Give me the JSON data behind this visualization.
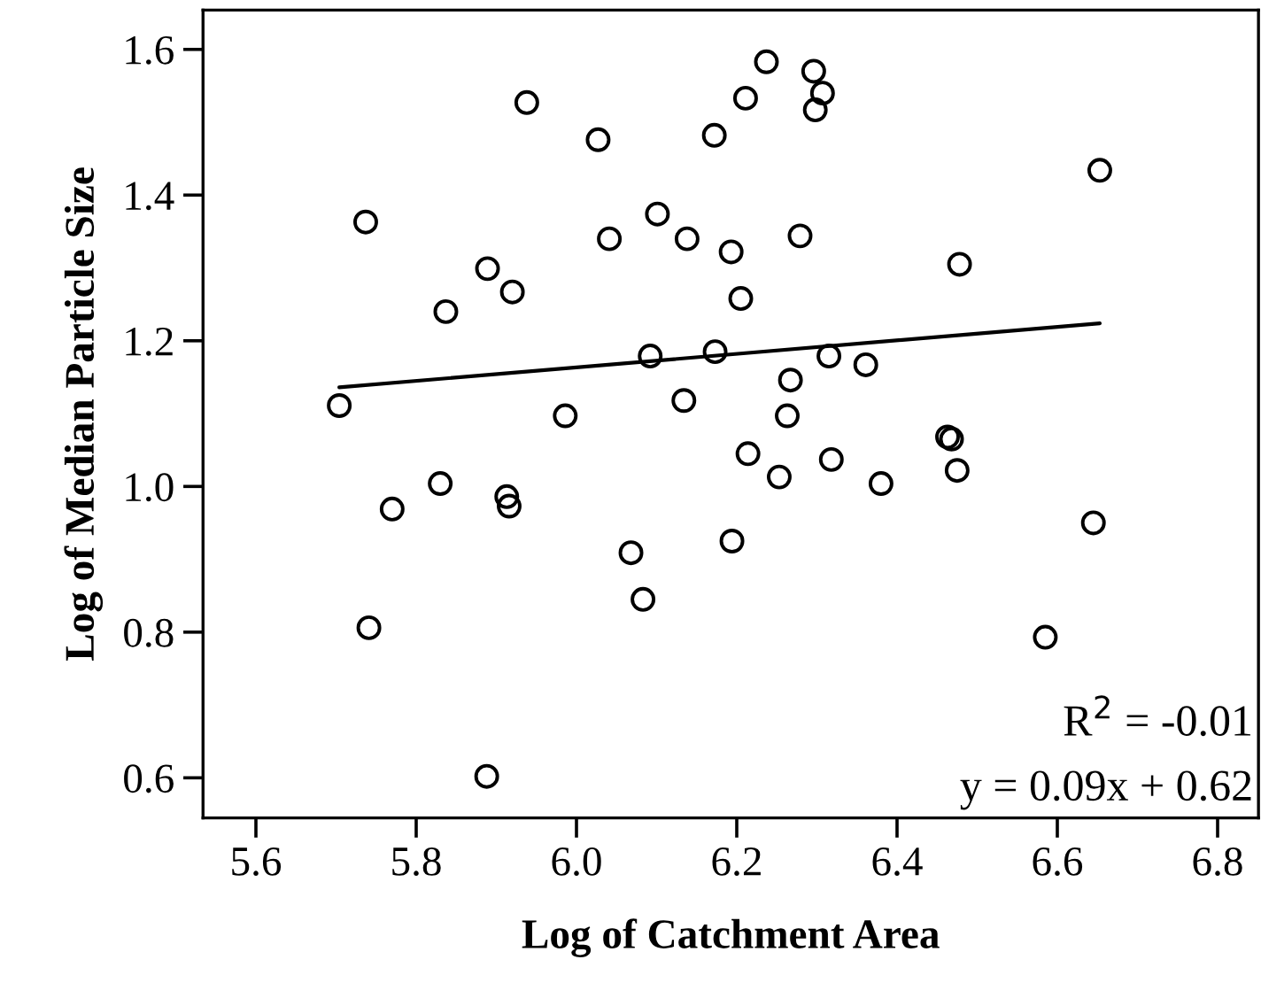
{
  "chart_data": {
    "type": "scatter",
    "xlabel": "Log of Catchment Area",
    "ylabel": "Log of Median Particle Size",
    "xlim": [
      5.534,
      6.851
    ],
    "ylim": [
      0.545,
      1.654
    ],
    "xticks": [
      {
        "value": 5.6,
        "label": "5.6"
      },
      {
        "value": 5.8,
        "label": "5.8"
      },
      {
        "value": 6.0,
        "label": "6.0"
      },
      {
        "value": 6.2,
        "label": "6.2"
      },
      {
        "value": 6.4,
        "label": "6.4"
      },
      {
        "value": 6.6,
        "label": "6.6"
      },
      {
        "value": 6.8,
        "label": "6.8"
      }
    ],
    "yticks": [
      {
        "value": 0.6,
        "label": "0.6"
      },
      {
        "value": 0.8,
        "label": "0.8"
      },
      {
        "value": 1.0,
        "label": "1.0"
      },
      {
        "value": 1.2,
        "label": "1.2"
      },
      {
        "value": 1.4,
        "label": "1.4"
      },
      {
        "value": 1.6,
        "label": "1.6"
      }
    ],
    "marker": "circle",
    "grid": false,
    "legend": false,
    "series": [
      {
        "color": "#000000",
        "x": [
          5.704,
          5.737,
          5.741,
          5.77,
          5.83,
          5.837,
          5.888,
          5.889,
          5.913,
          5.916,
          5.92,
          5.938,
          5.986,
          6.027,
          6.041,
          6.068,
          6.083,
          6.092,
          6.101,
          6.134,
          6.138,
          6.172,
          6.173,
          6.193,
          6.194,
          6.205,
          6.211,
          6.214,
          6.237,
          6.253,
          6.263,
          6.267,
          6.279,
          6.296,
          6.298,
          6.307,
          6.315,
          6.318,
          6.361,
          6.38,
          6.463,
          6.468,
          6.475,
          6.478,
          6.585,
          6.645,
          6.653
        ],
        "values": [
          1.111,
          1.363,
          0.806,
          0.969,
          1.004,
          1.24,
          0.602,
          1.299,
          0.986,
          0.973,
          1.267,
          1.527,
          1.097,
          1.476,
          1.34,
          0.909,
          0.845,
          1.179,
          1.374,
          1.118,
          1.34,
          1.482,
          1.185,
          1.322,
          0.925,
          1.258,
          1.533,
          1.045,
          1.583,
          1.013,
          1.097,
          1.146,
          1.344,
          1.57,
          1.517,
          1.54,
          1.179,
          1.037,
          1.167,
          1.004,
          1.068,
          1.065,
          1.022,
          1.305,
          0.793,
          0.95,
          1.434
        ]
      },
      {
        "type": "line",
        "color": "#000000",
        "marker": "none",
        "x": [
          5.704,
          6.653
        ],
        "values": [
          1.136,
          1.224
        ]
      }
    ],
    "annotations": [
      "R$^{2}$ = -0.01",
      "y = 0.09x + 0.62"
    ]
  }
}
